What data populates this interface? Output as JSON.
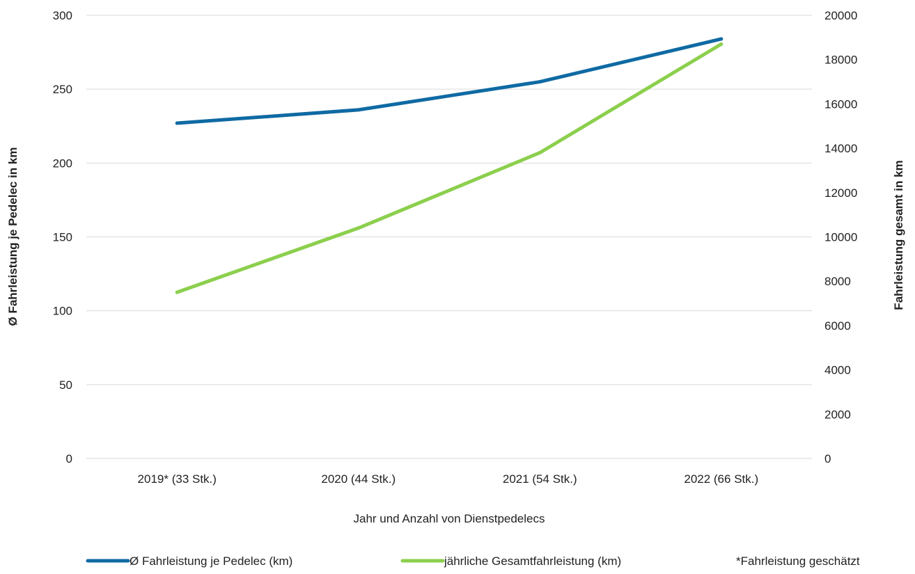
{
  "chart_data": {
    "type": "line",
    "categories": [
      "2019* (33 Stk.)",
      "2020 (44 Stk.)",
      "2021 (54 Stk.)",
      "2022 (66 Stk.)"
    ],
    "series": [
      {
        "name": "Ø Fahrleistung je Pedelec (km)",
        "axis": "left",
        "color": "#0f6aa3",
        "values": [
          227,
          236,
          255,
          284
        ]
      },
      {
        "name": "jährliche Gesamtfahrleistung (km)",
        "axis": "right",
        "color": "#8ccf4d",
        "values": [
          7500,
          10400,
          13800,
          18700
        ]
      }
    ],
    "xlabel": "Jahr und Anzahl von Dienstpedelecs",
    "ylabel_left": "Ø Fahrleistung je Pedelec in km",
    "ylabel_right": "Fahrleistung gesamt in km",
    "ylim_left": [
      0,
      300
    ],
    "yticks_left": [
      0,
      50,
      100,
      150,
      200,
      250,
      300
    ],
    "ylim_right": [
      0,
      20000
    ],
    "yticks_right": [
      0,
      2000,
      4000,
      6000,
      8000,
      10000,
      12000,
      14000,
      16000,
      18000,
      20000
    ],
    "grid": true,
    "gridline_color": "#d9d9d9",
    "legend_position": "bottom",
    "footnote": "*Fahrleistung geschätzt"
  }
}
